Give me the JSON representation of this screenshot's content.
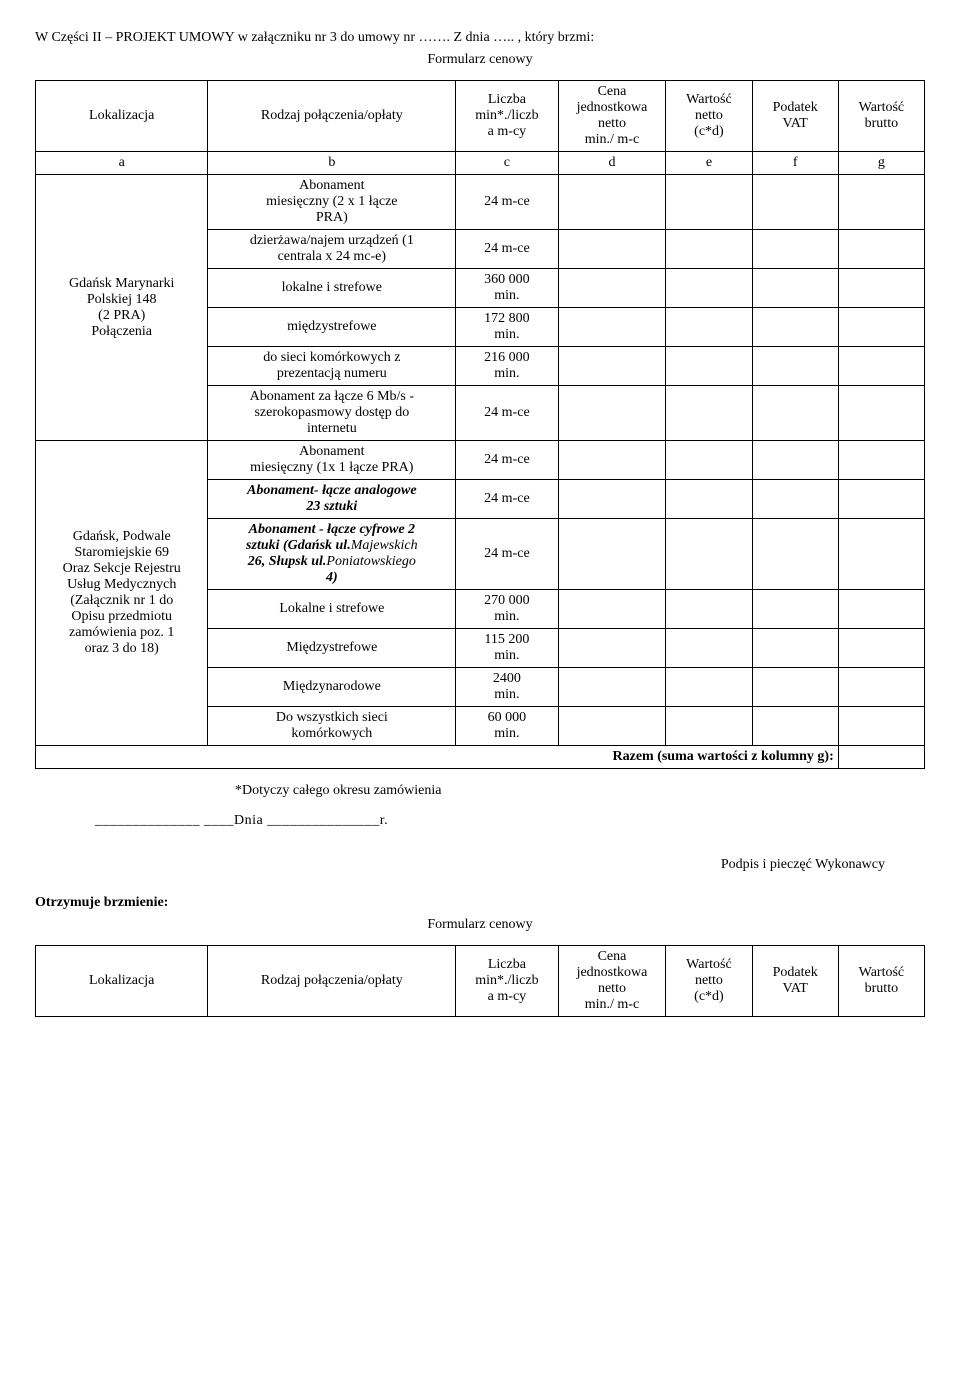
{
  "top_text_1": "W Części II – PROJEKT UMOWY w załączniku nr 3 do umowy nr ……. Z dnia ….. , który brzmi:",
  "formularz_title": "Formularz cenowy",
  "hdr": {
    "lokalizacja": "Lokalizacja",
    "rodzaj": "Rodzaj połączenia/opłaty",
    "liczba": "Liczba\nmin*./liczb\na m-cy",
    "cena": "Cena\njednostkowa\nnetto\nmin./ m-c",
    "wartosc_netto": "Wartość\nnetto\n(c*d)",
    "podatek": "Podatek\nVAT",
    "wartosc_brutto": "Wartość\nbrutto"
  },
  "letters": {
    "a": "a",
    "b": "b",
    "c": "c",
    "d": "d",
    "e": "e",
    "f": "f",
    "g": "g"
  },
  "loc1": "Gdańsk Marynarki\nPolskiej 148\n(2 PRA)\nPołączenia",
  "loc1_rows": [
    {
      "rod": "Abonament\nmiesięczny (2 x 1 łącze\nPRA)",
      "num": "24 m-ce"
    },
    {
      "rod": "dzierżawa/najem urządzeń (1\ncentrala x 24 mc-e)",
      "num": "24 m-ce"
    },
    {
      "rod": "lokalne i strefowe",
      "num": "360 000\nmin."
    },
    {
      "rod": "międzystrefowe",
      "num": "172 800\nmin."
    },
    {
      "rod": "do sieci komórkowych z\nprezentacją numeru",
      "num": "216 000\nmin."
    },
    {
      "rod": "Abonament za łącze 6 Mb/s -\nszerokopasmowy dostęp do\ninternetu",
      "num": "24 m-ce"
    }
  ],
  "loc2": "Gdańsk, Podwale\nStaromiejskie 69\nOraz Sekcje Rejestru\nUsług Medycznych\n(Załącznik nr 1 do\nOpisu przedmiotu\nzamówienia poz. 1\noraz  3 do 18)",
  "loc2_rows": [
    {
      "rod": "Abonament\nmiesięczny (1x 1 łącze PRA)",
      "num": "24 m-ce",
      "plain": true
    },
    {
      "rod_html": "<span class='bold-ital'>Abonament- <span>łącze analogowe</span><br>23 sztuki</span>",
      "num": "24 m-ce"
    },
    {
      "rod_html": "<span class='bold-ital'>Abonament - łącze cyfrowe 2<br>sztuki (Gdańsk ul.</span><span class='ital'>Majewskich</span><br><span class='bold-ital'>26,  Słupsk ul.</span><span class='ital'>Poniatowskiego</span><br><span class='bold-ital'>4)</span>",
      "num": "24 m-ce"
    },
    {
      "rod": "Lokalne i strefowe",
      "num": "270 000\nmin.",
      "plain": true
    },
    {
      "rod": "Międzystrefowe",
      "num": "115 200\nmin.",
      "plain": true
    },
    {
      "rod": "Międzynarodowe",
      "num": "2400\nmin.",
      "plain": true
    },
    {
      "rod": "Do wszystkich sieci\nkomórkowych",
      "num": "60 000\nmin.",
      "plain": true
    }
  ],
  "razem": "Razem (suma wartości z kolumny g):",
  "note": "*Dotyczy całego okresu zamówienia",
  "dnia": "______________ ____Dnia _______________r.",
  "sig": "Podpis i pieczęć Wykonawcy",
  "otrzym": "Otrzymuje brzmienie:",
  "col_widths": {
    "a": 160,
    "b": 230,
    "c": 95,
    "d": 100,
    "e": 80,
    "f": 80,
    "g": 80
  }
}
